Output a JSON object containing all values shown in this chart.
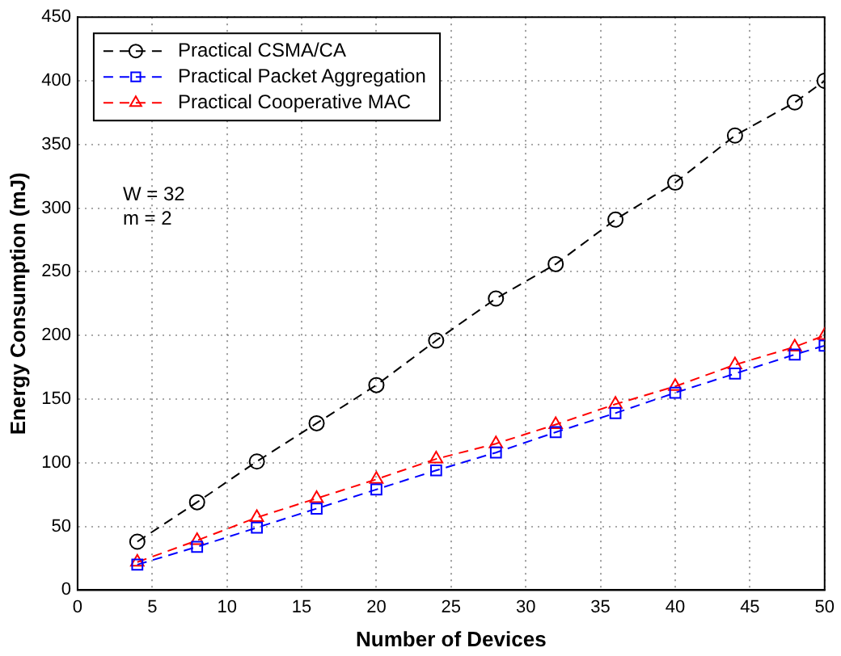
{
  "chart_data": {
    "type": "line",
    "xlabel": "Number of Devices",
    "ylabel": "Energy Consumption (mJ)",
    "x": [
      4,
      8,
      12,
      16,
      20,
      24,
      28,
      32,
      36,
      40,
      44,
      48,
      50
    ],
    "series": [
      {
        "name": "Practical CSMA/CA",
        "color": "#000000",
        "marker": "circle",
        "values": [
          38,
          69,
          101,
          131,
          161,
          196,
          229,
          256,
          291,
          320,
          357,
          383,
          400
        ]
      },
      {
        "name": "Practical Packet Aggregation",
        "color": "#0000ff",
        "marker": "square",
        "values": [
          20,
          34,
          49,
          64,
          79,
          94,
          108,
          124,
          139,
          155,
          170,
          185,
          192
        ]
      },
      {
        "name": "Practical Cooperative MAC",
        "color": "#ff0000",
        "marker": "triangle",
        "values": [
          22,
          39,
          57,
          72,
          87,
          103,
          115,
          130,
          146,
          160,
          177,
          191,
          200
        ]
      }
    ],
    "xlim": [
      0,
      50
    ],
    "xticks": [
      0,
      5,
      10,
      15,
      20,
      25,
      30,
      35,
      40,
      45,
      50
    ],
    "ylim": [
      0,
      450
    ],
    "yticks": [
      0,
      50,
      100,
      150,
      200,
      250,
      300,
      350,
      400,
      450
    ],
    "grid": true,
    "legend": "top left",
    "line_style": "dashed",
    "annotations": [
      "W = 32",
      "m = 2"
    ]
  }
}
